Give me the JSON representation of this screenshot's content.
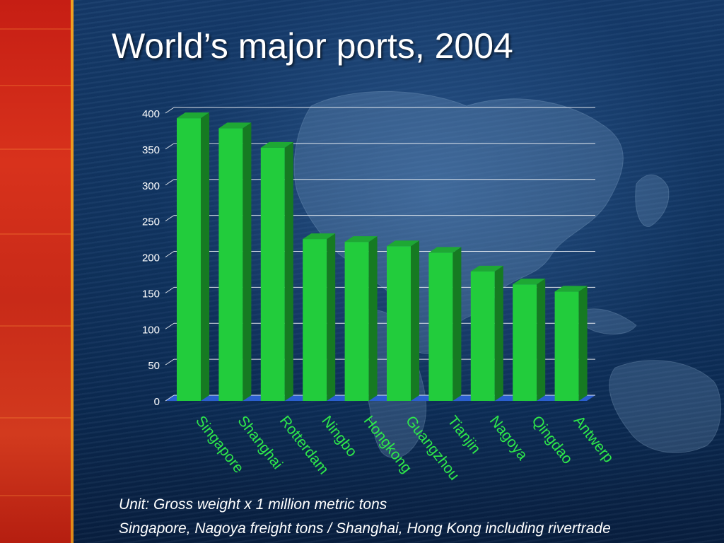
{
  "title": "World’s major ports, 2004",
  "notes": {
    "unit": "Unit: Gross weight x 1 million metric tons",
    "footnote": "Singapore, Nagoya freight tons / Shanghai, Hong Kong including rivertrade"
  },
  "colors": {
    "bar_front": "#22cc3c",
    "bar_side": "#167a22",
    "bar_top": "#1ea834",
    "floor": "#2a5fd0",
    "gridline": "#ffffff",
    "category_label": "#2ee84a",
    "tick_label": "#ffffff"
  },
  "chart_data": {
    "type": "bar",
    "categories": [
      "Singapore",
      "Shanghai",
      "Rotterdam",
      "Ningbo",
      "Hongkong",
      "Guangzhou",
      "Tianjin",
      "Nagoya",
      "Qingdao",
      "Antwerp"
    ],
    "values": [
      393,
      379,
      352,
      225,
      221,
      215,
      206,
      180,
      162,
      152
    ],
    "ylim": [
      0,
      400
    ],
    "yticks": [
      0,
      50,
      100,
      150,
      200,
      250,
      300,
      350,
      400
    ],
    "grid": true,
    "legend": "none",
    "style": "3d"
  }
}
